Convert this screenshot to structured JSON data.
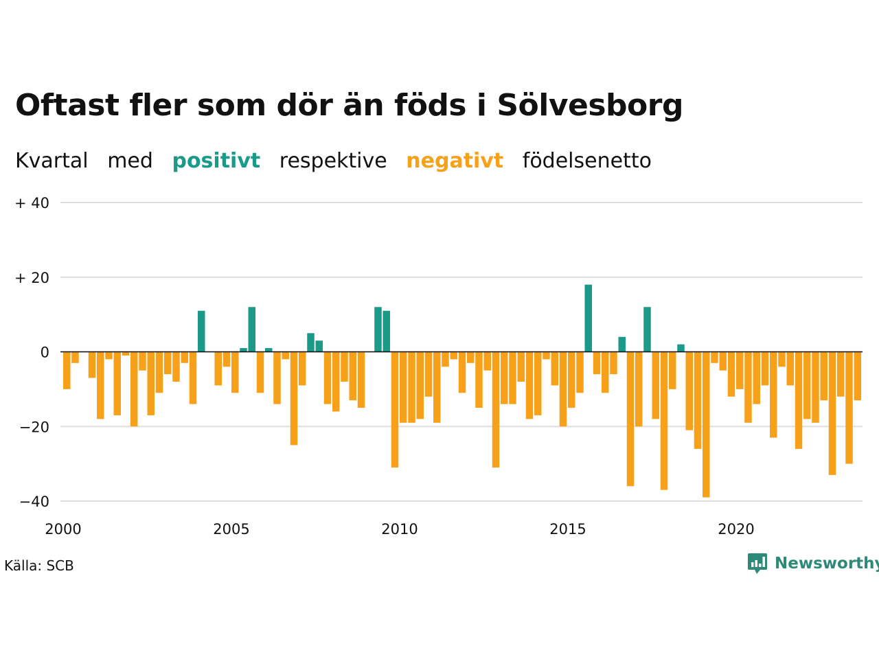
{
  "title": "Oftast fler som dör än föds i Sölvesborg",
  "subtitle": {
    "w1": "Kvartal",
    "w2": "med",
    "positive": "positivt",
    "w3": "respektive",
    "negative": "negativt",
    "w4": "födelsenetto"
  },
  "colors": {
    "positive": "#1b9a8a",
    "negative": "#f7a11a",
    "grid": "#dddddd",
    "zero_line": "#111111"
  },
  "source": "Källa: SCB",
  "logo": {
    "text": "Newsworthy",
    "icon": "newsworthy-bar-chart-icon"
  },
  "chart_data": {
    "type": "bar",
    "x_start": "2000 Q1",
    "frequency": "quarterly",
    "ylim": [
      -40,
      40
    ],
    "yticks": [
      {
        "value": 40,
        "label": "+ 40"
      },
      {
        "value": 20,
        "label": "+ 20"
      },
      {
        "value": 0,
        "label": "0"
      },
      {
        "value": -20,
        "label": "−20"
      },
      {
        "value": -40,
        "label": "−40"
      }
    ],
    "xticks": [
      "2000",
      "2005",
      "2010",
      "2015",
      "2020"
    ],
    "grid": true,
    "values": [
      -10,
      -3,
      0,
      -7,
      -18,
      -2,
      -17,
      -1,
      -20,
      -5,
      -17,
      -11,
      -6,
      -8,
      -3,
      -14,
      11,
      0,
      -9,
      -4,
      -11,
      1,
      12,
      -11,
      1,
      -14,
      -2,
      -25,
      -9,
      5,
      3,
      -14,
      -16,
      -8,
      -13,
      -15,
      0,
      12,
      11,
      -31,
      -19,
      -19,
      -18,
      -12,
      -19,
      -4,
      -2,
      -11,
      -3,
      -15,
      -5,
      -31,
      -14,
      -14,
      -8,
      -18,
      -17,
      -2,
      -9,
      -20,
      -15,
      -11,
      18,
      -6,
      -11,
      -6,
      4,
      -36,
      -20,
      12,
      -18,
      -37,
      -10,
      2,
      -21,
      -26,
      -39,
      -3,
      -5,
      -12,
      -10,
      -19,
      -14,
      -9,
      -23,
      -4,
      -9,
      -26,
      -18,
      -19,
      -13,
      -33,
      -12,
      -30,
      -13
    ]
  }
}
